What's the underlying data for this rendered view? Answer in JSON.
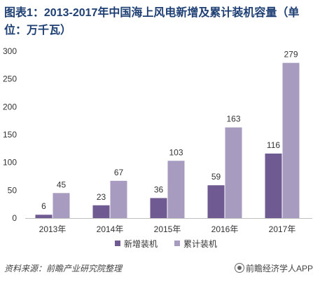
{
  "title": "图表1：2013-2017年中国海上风电新增及累计装机容量（单位：万千瓦）",
  "source": "资料来源：前瞻产业研究院整理",
  "brand": "前瞻经济学人APP",
  "colors": {
    "new": "#6f5a91",
    "cumulative": "#a79bbf",
    "axis": "#bfbfbf",
    "text": "#333333"
  },
  "chart_data": {
    "type": "bar",
    "categories": [
      "2013年",
      "2014年",
      "2015年",
      "2016年",
      "2017年"
    ],
    "series": [
      {
        "name": "新增装机",
        "values": [
          6,
          23,
          36,
          59,
          116
        ]
      },
      {
        "name": "累计装机",
        "values": [
          45,
          67,
          103,
          163,
          279
        ]
      }
    ],
    "ylim": [
      0,
      300
    ],
    "yticks": [
      0,
      50,
      100,
      150,
      200,
      250,
      300
    ],
    "legend": "bottom",
    "grid": false
  }
}
